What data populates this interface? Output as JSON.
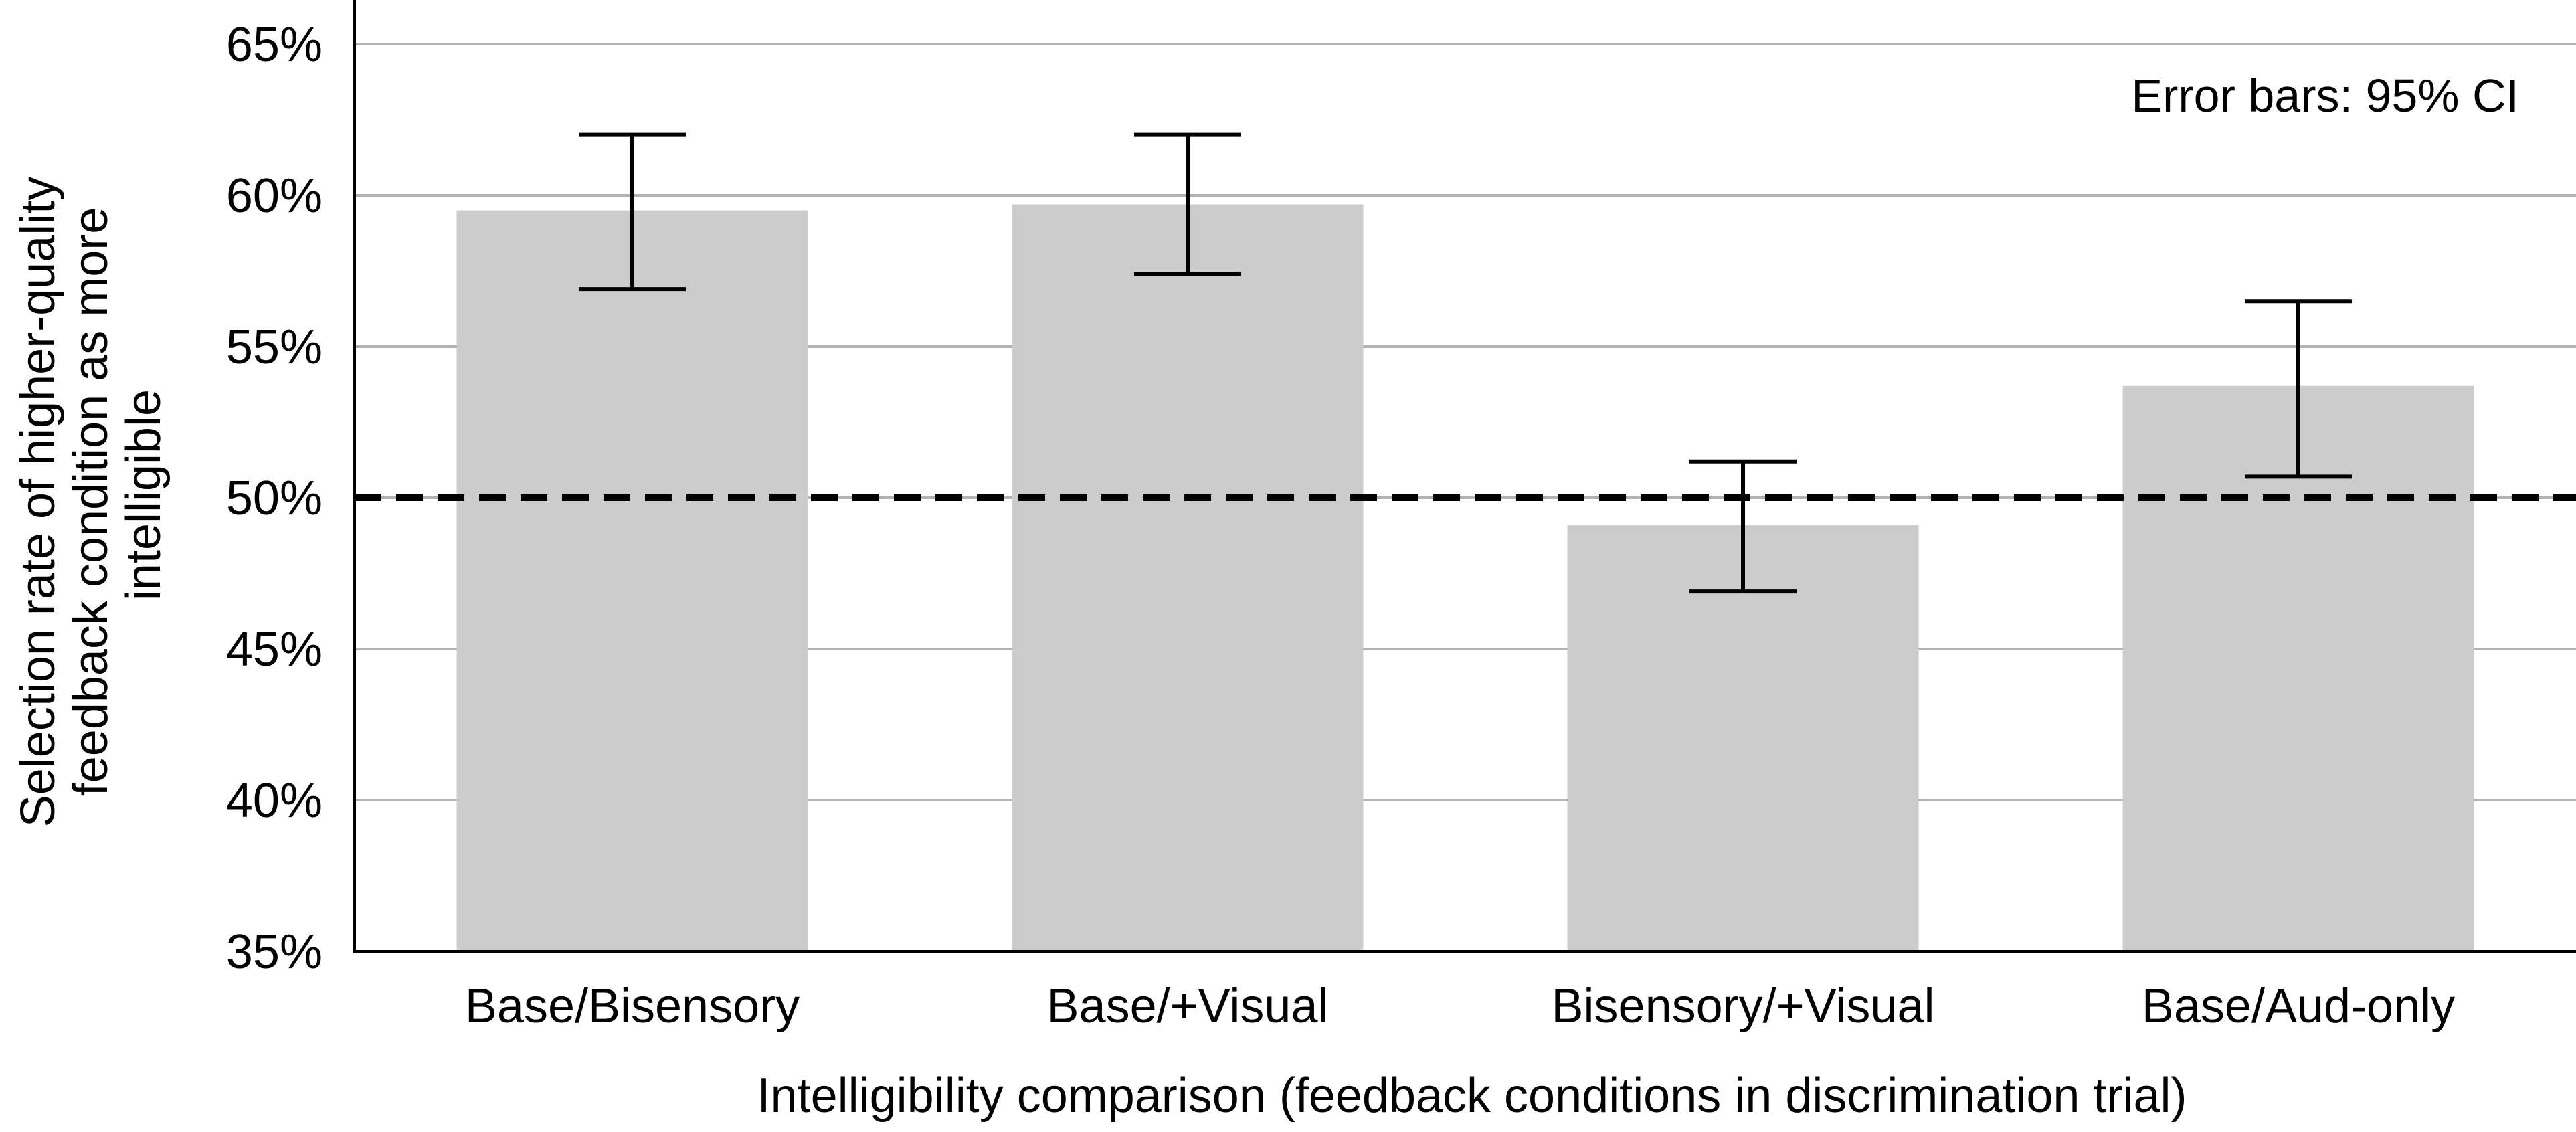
{
  "chart_data": {
    "type": "bar",
    "title": "",
    "xlabel": "Intelligibility comparison (feedback conditions in discrimination trial)",
    "ylabel_lines": [
      "Selection rate of higher-quality",
      "feedback condition as more",
      "intelligible"
    ],
    "annotation": "Error bars: 95% CI",
    "categories": [
      "Base/Bisensory",
      "Base/+Visual",
      "Bisensory/+Visual",
      "Base/Aud-only"
    ],
    "values": [
      59.5,
      59.7,
      49.1,
      53.7
    ],
    "ci_low": [
      56.9,
      57.4,
      46.9,
      50.7
    ],
    "ci_high": [
      62.0,
      62.0,
      51.2,
      56.5
    ],
    "ylim": [
      35,
      65
    ],
    "yticks": [
      35,
      40,
      45,
      50,
      55,
      60,
      65
    ],
    "ytick_labels": [
      "35%",
      "40%",
      "45%",
      "50%",
      "55%",
      "60%",
      "65%"
    ],
    "reference_line": 50,
    "grid": true,
    "colors": {
      "bar": "#cccccc",
      "grid": "#b3b3b3",
      "axis": "#000000",
      "reference": "#000000"
    }
  }
}
